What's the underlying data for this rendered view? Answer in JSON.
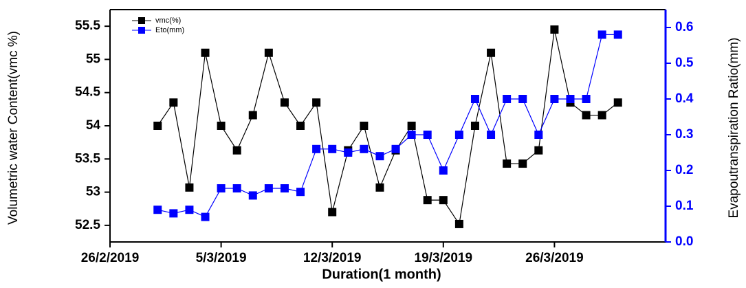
{
  "chart_data": {
    "type": "line",
    "x_label": "Duration(1 month)",
    "y_label": "Volumetric water Content(vmc %)",
    "y2_label": "Evapoutranspiration Ratio(mm)",
    "x": [
      "1/3/2019",
      "2/3/2019",
      "3/3/2019",
      "4/3/2019",
      "5/3/2019",
      "6/3/2019",
      "7/3/2019",
      "8/3/2019",
      "9/3/2019",
      "10/3/2019",
      "11/3/2019",
      "12/3/2019",
      "13/3/2019",
      "14/3/2019",
      "15/3/2019",
      "16/3/2019",
      "17/3/2019",
      "18/3/2019",
      "19/3/2019",
      "20/3/2019",
      "21/3/2019",
      "22/3/2019",
      "23/3/2019",
      "24/3/2019",
      "25/3/2019",
      "26/3/2019",
      "27/3/2019",
      "28/3/2019",
      "29/3/2019",
      "30/3/2019"
    ],
    "series": [
      {
        "name": "vmc(%)",
        "color": "#000000",
        "values": [
          54.0,
          54.35,
          53.07,
          55.1,
          54.0,
          53.63,
          54.16,
          55.1,
          54.35,
          54.0,
          54.35,
          52.7,
          53.63,
          54.0,
          53.07,
          53.63,
          54.0,
          52.88,
          52.88,
          52.52,
          54.0,
          55.1,
          53.43,
          53.43,
          53.63,
          55.45,
          54.35,
          54.16,
          54.16,
          54.35
        ]
      },
      {
        "name": "Eto(mm)",
        "color": "#0000ff",
        "axis": "y2",
        "values": [
          0.09,
          0.08,
          0.09,
          0.07,
          0.15,
          0.15,
          0.13,
          0.15,
          0.15,
          0.14,
          0.26,
          0.26,
          0.25,
          0.26,
          0.24,
          0.26,
          0.3,
          0.3,
          0.2,
          0.3,
          0.4,
          0.3,
          0.4,
          0.4,
          0.3,
          0.4,
          0.4,
          0.4,
          0.58,
          0.58
        ]
      }
    ],
    "xlim": [
      "26/2/2019",
      "2/4/2019"
    ],
    "xticks": [
      "26/2/2019",
      "5/3/2019",
      "12/3/2019",
      "19/3/2019",
      "26/3/2019"
    ],
    "ylim": [
      52.25,
      55.75
    ],
    "yticks": [
      52.5,
      53.0,
      53.5,
      54.0,
      54.5,
      55.0,
      55.5
    ],
    "y2lim": [
      0,
      0.65
    ],
    "y2ticks": [
      {
        "value": 0,
        "label": "0.0"
      },
      0.1,
      0.2,
      0.3,
      0.4,
      0.5,
      0.6
    ],
    "y2_color": "#0000ff",
    "legend": "top-left"
  }
}
